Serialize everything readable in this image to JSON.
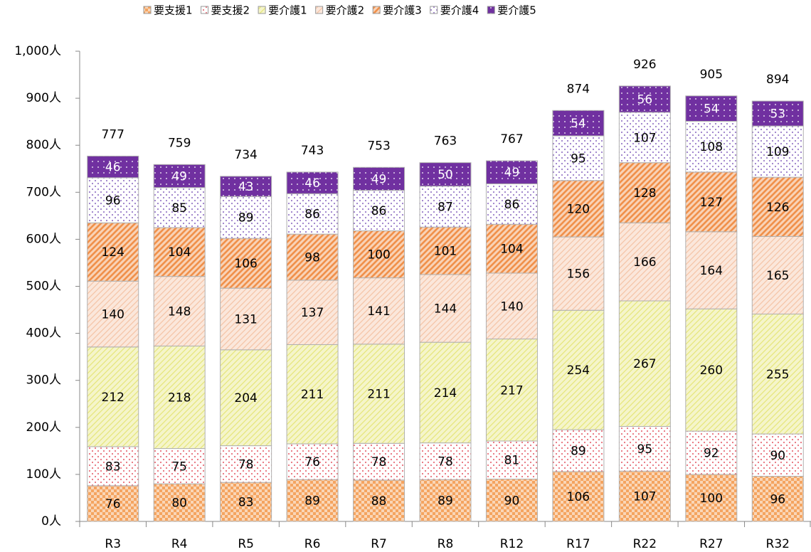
{
  "chart_data": {
    "type": "stacked-bar",
    "categories": [
      "R3",
      "R4",
      "R5",
      "R6",
      "R7",
      "R8",
      "R12",
      "R17",
      "R22",
      "R27",
      "R32"
    ],
    "series": [
      {
        "name": "要支援1",
        "color": "#f4a460",
        "pattern": "checker",
        "values": [
          76,
          80,
          83,
          89,
          88,
          89,
          90,
          106,
          107,
          100,
          96
        ]
      },
      {
        "name": "要支援2",
        "color": "#e8707a",
        "pattern": "dots",
        "values": [
          83,
          75,
          78,
          76,
          78,
          78,
          81,
          89,
          95,
          92,
          90
        ]
      },
      {
        "name": "要介護1",
        "color": "#e6e67a",
        "pattern": "stripes",
        "values": [
          212,
          218,
          204,
          211,
          211,
          214,
          217,
          254,
          267,
          260,
          255
        ]
      },
      {
        "name": "要介護2",
        "color": "#f5c4a6",
        "pattern": "stripes",
        "values": [
          140,
          148,
          131,
          137,
          141,
          144,
          140,
          156,
          166,
          164,
          165
        ]
      },
      {
        "name": "要介護3",
        "color": "#f0904a",
        "pattern": "thick-stripes",
        "values": [
          124,
          104,
          106,
          98,
          100,
          101,
          104,
          120,
          128,
          127,
          126
        ]
      },
      {
        "name": "要介護4",
        "color": "#9a7cc8",
        "pattern": "dots",
        "values": [
          96,
          85,
          89,
          86,
          86,
          87,
          86,
          95,
          107,
          108,
          109
        ]
      },
      {
        "name": "要介護5",
        "color": "#7030a0",
        "pattern": "solid-dots",
        "values": [
          46,
          49,
          43,
          46,
          49,
          50,
          49,
          54,
          56,
          54,
          53
        ]
      }
    ],
    "totals": [
      777,
      759,
      734,
      743,
      753,
      763,
      767,
      874,
      926,
      905,
      894
    ],
    "ylim": [
      0,
      1000
    ],
    "yticks": [
      {
        "value": 0,
        "label": "0人"
      },
      {
        "value": 100,
        "label": "100人"
      },
      {
        "value": 200,
        "label": "200人"
      },
      {
        "value": 300,
        "label": "300人"
      },
      {
        "value": 400,
        "label": "400人"
      },
      {
        "value": 500,
        "label": "500人"
      },
      {
        "value": 600,
        "label": "600人"
      },
      {
        "value": 700,
        "label": "700人"
      },
      {
        "value": 800,
        "label": "800人"
      },
      {
        "value": 900,
        "label": "900人"
      },
      {
        "value": 1000,
        "label": "1,000人"
      }
    ],
    "legend": "top"
  }
}
